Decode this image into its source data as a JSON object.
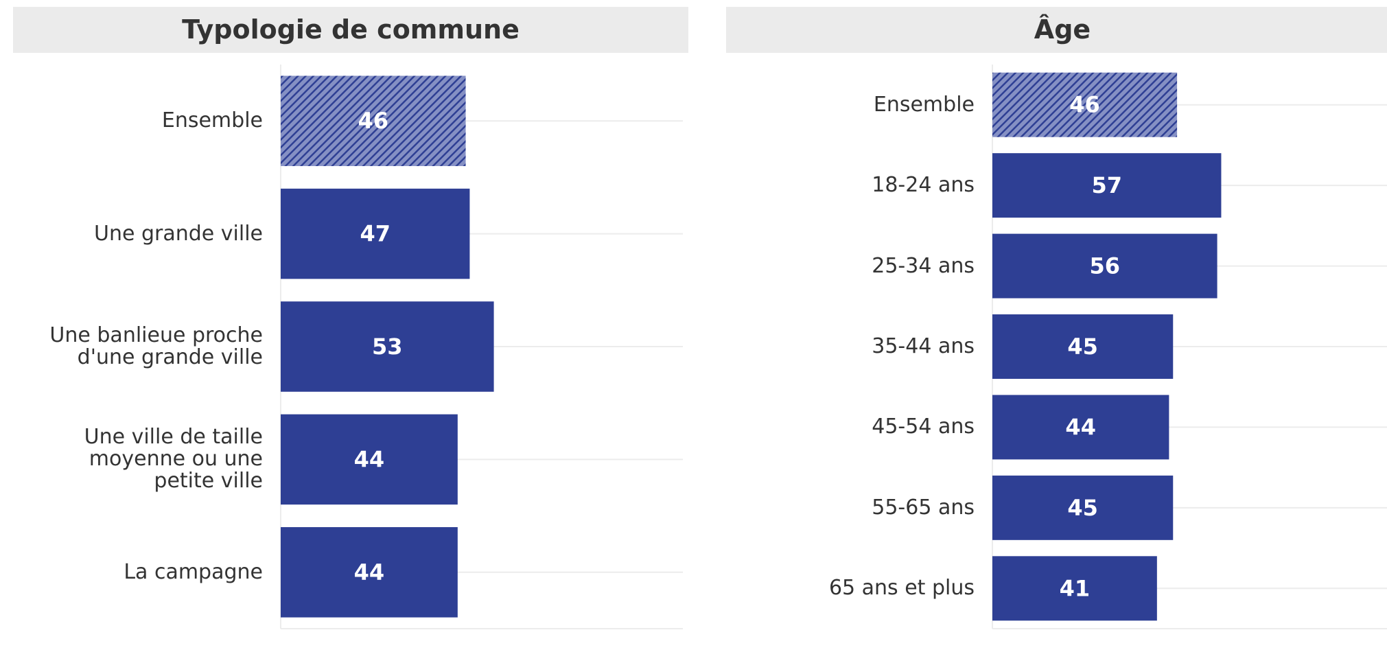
{
  "chart_data": [
    {
      "type": "bar",
      "orientation": "horizontal",
      "title": "Typologie de commune",
      "categories": [
        "Ensemble",
        "Une grande ville",
        "Une banlieue proche\nd'une grande ville",
        "Une ville de taille\nmoyenne ou une\npetite ville",
        "La campagne"
      ],
      "values": [
        46,
        47,
        53,
        44,
        44
      ],
      "color": "#2e3f94",
      "hatched_category": "Ensemble",
      "xlim": [
        0,
        100
      ]
    },
    {
      "type": "bar",
      "orientation": "horizontal",
      "title": "Âge",
      "categories": [
        "Ensemble",
        "18-24 ans",
        "25-34 ans",
        "35-44 ans",
        "45-54 ans",
        "55-65 ans",
        "65 ans et plus"
      ],
      "values": [
        46,
        57,
        56,
        45,
        44,
        45,
        41
      ],
      "color": "#2e3f94",
      "hatched_category": "Ensemble",
      "xlim": [
        0,
        100
      ]
    }
  ]
}
